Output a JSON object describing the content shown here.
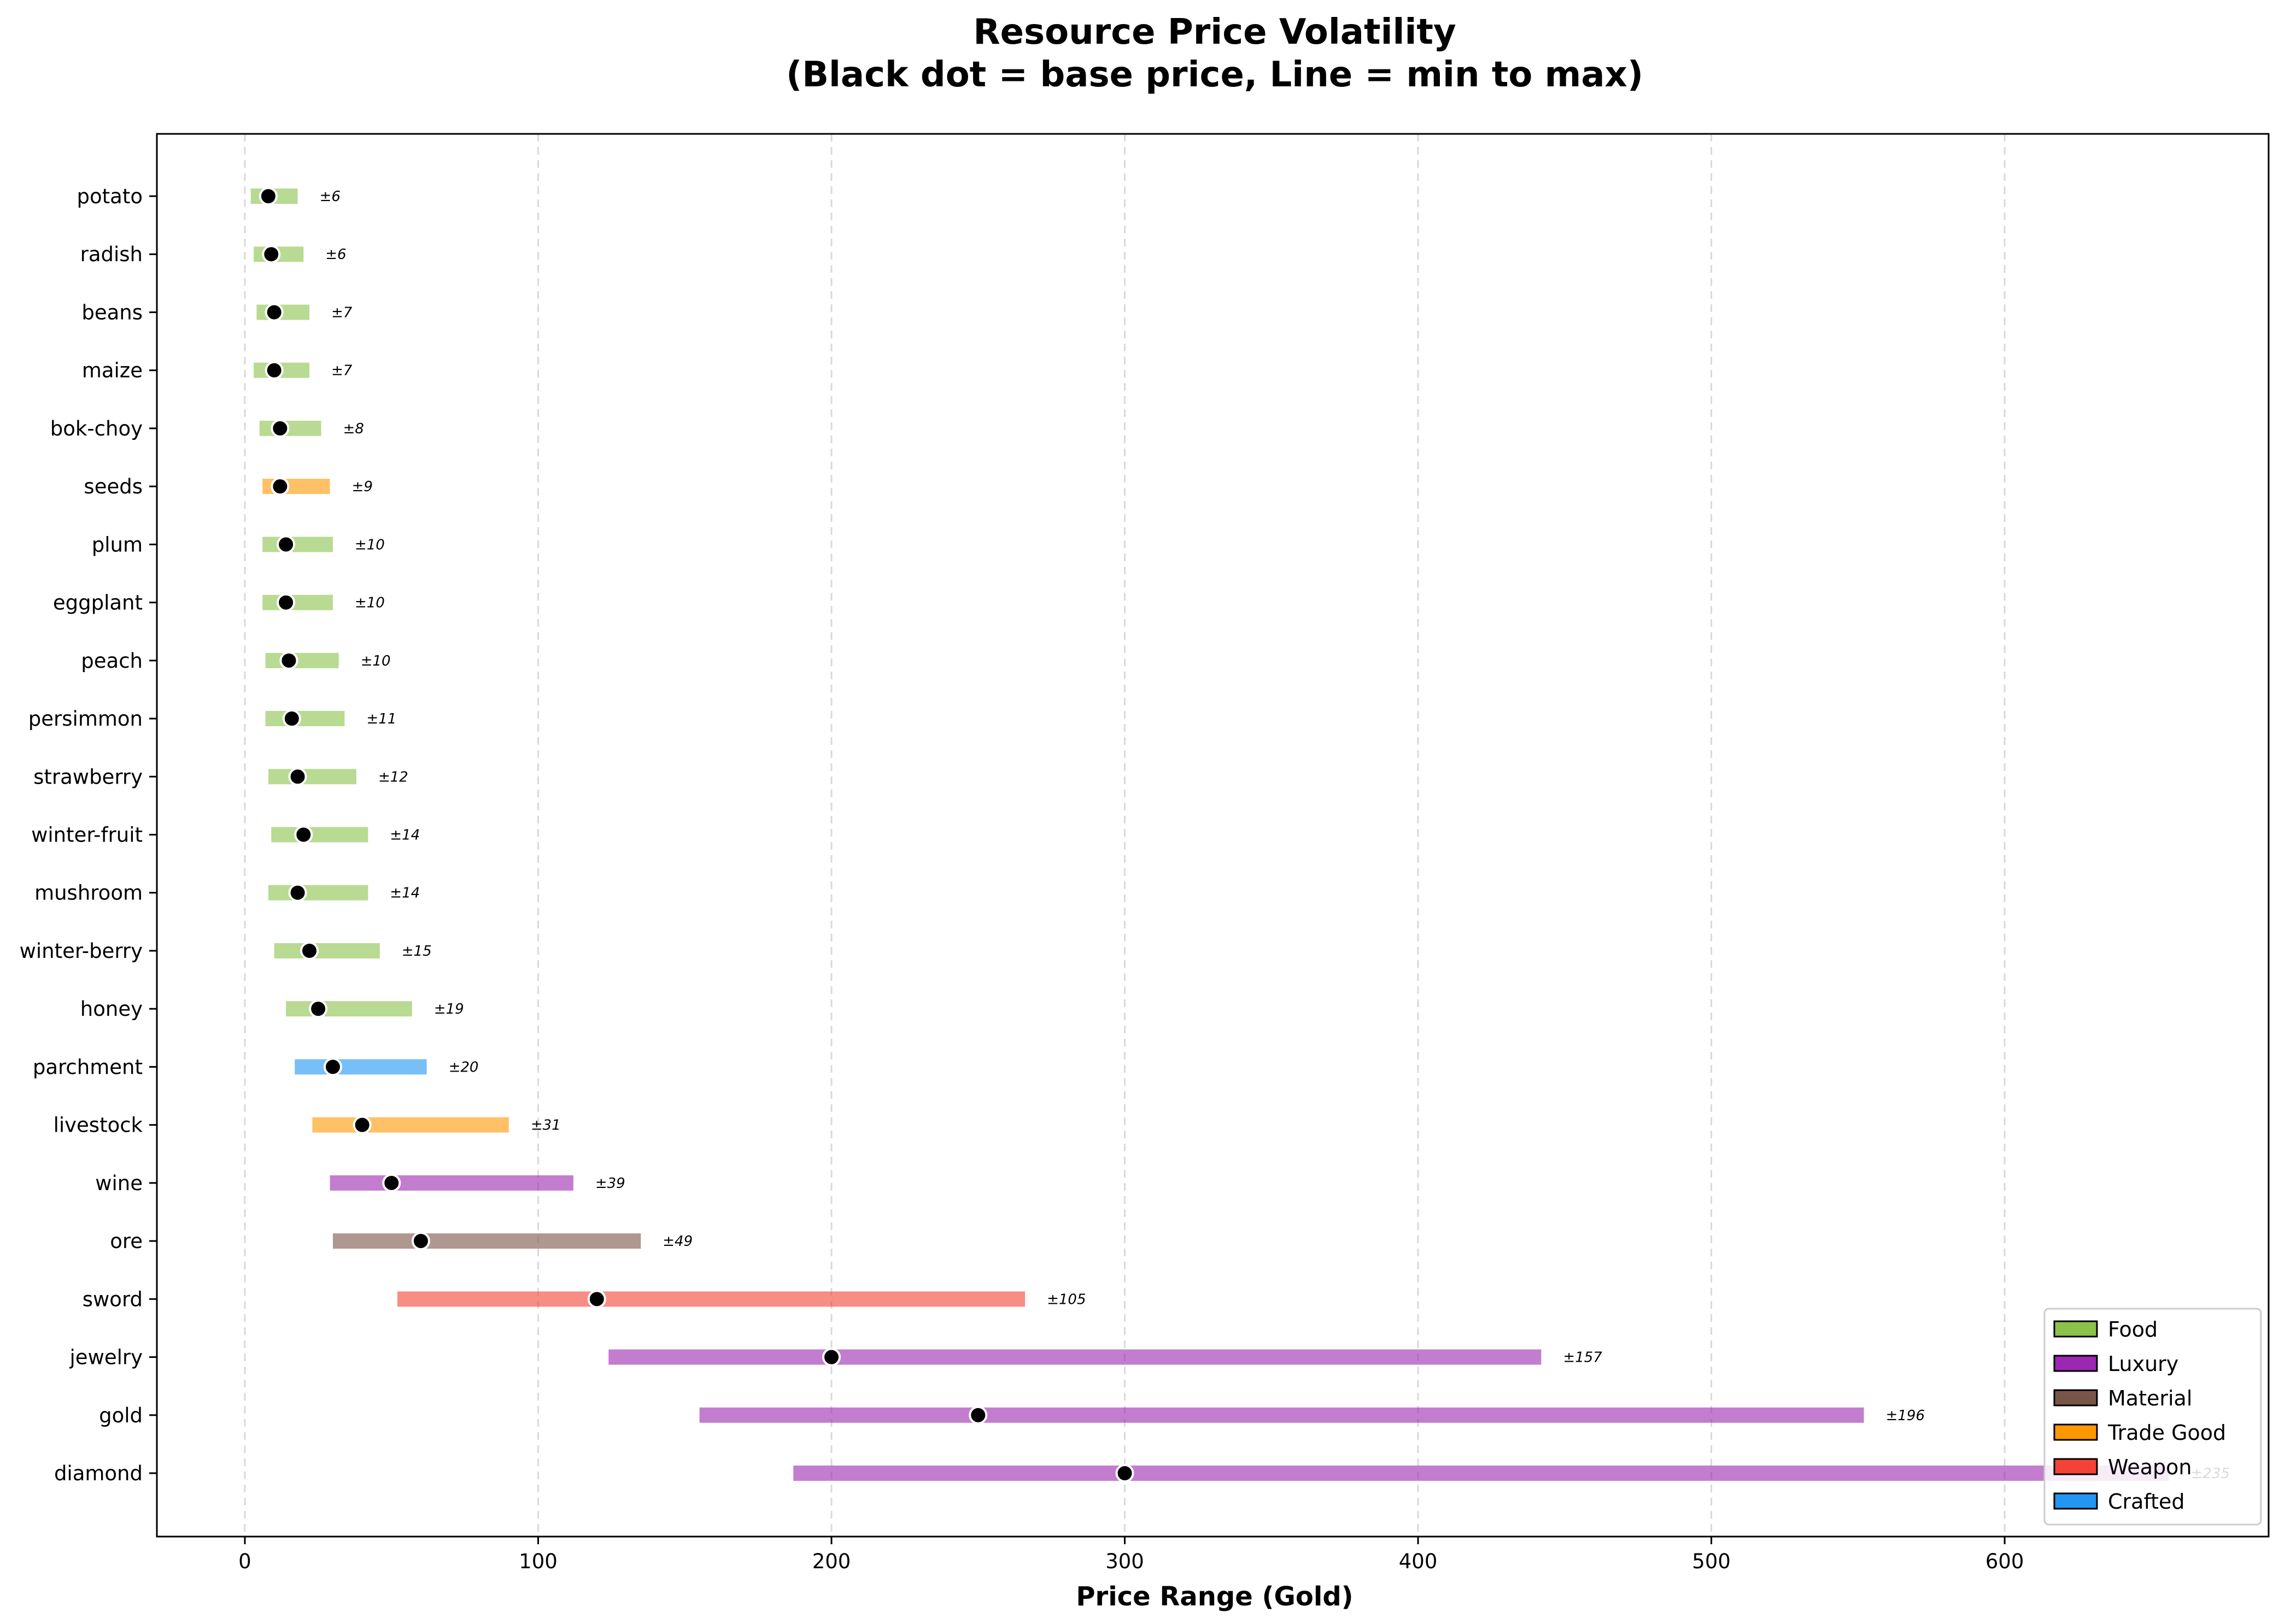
{
  "chart_data": {
    "type": "range",
    "title_lines": [
      "Resource Price Volatility",
      "(Black dot = base price, Line = min to max)"
    ],
    "xlabel": "Price Range (Gold)",
    "ylabel": "",
    "xlim": [
      -30,
      690
    ],
    "xticks": [
      0,
      100,
      200,
      300,
      400,
      500,
      600
    ],
    "grid": "x-dashed",
    "legend_position": "lower-right",
    "categories": {
      "Food": {
        "color": "#8bc34a"
      },
      "Luxury": {
        "color": "#9c27b0"
      },
      "Material": {
        "color": "#795548"
      },
      "Trade Good": {
        "color": "#ff9800"
      },
      "Weapon": {
        "color": "#f44336"
      },
      "Crafted": {
        "color": "#2196f3"
      }
    },
    "legend": [
      "Food",
      "Luxury",
      "Material",
      "Trade Good",
      "Weapon",
      "Crafted"
    ],
    "items": [
      {
        "name": "potato",
        "category": "Food",
        "min": 2,
        "max": 18,
        "base": 8,
        "label": "±6"
      },
      {
        "name": "radish",
        "category": "Food",
        "min": 3,
        "max": 20,
        "base": 9,
        "label": "±6"
      },
      {
        "name": "beans",
        "category": "Food",
        "min": 4,
        "max": 22,
        "base": 10,
        "label": "±7"
      },
      {
        "name": "maize",
        "category": "Food",
        "min": 3,
        "max": 22,
        "base": 10,
        "label": "±7"
      },
      {
        "name": "bok-choy",
        "category": "Food",
        "min": 5,
        "max": 26,
        "base": 12,
        "label": "±8"
      },
      {
        "name": "seeds",
        "category": "Trade Good",
        "min": 6,
        "max": 29,
        "base": 12,
        "label": "±9"
      },
      {
        "name": "plum",
        "category": "Food",
        "min": 6,
        "max": 30,
        "base": 14,
        "label": "±10"
      },
      {
        "name": "eggplant",
        "category": "Food",
        "min": 6,
        "max": 30,
        "base": 14,
        "label": "±10"
      },
      {
        "name": "peach",
        "category": "Food",
        "min": 7,
        "max": 32,
        "base": 15,
        "label": "±10"
      },
      {
        "name": "persimmon",
        "category": "Food",
        "min": 7,
        "max": 34,
        "base": 16,
        "label": "±11"
      },
      {
        "name": "strawberry",
        "category": "Food",
        "min": 8,
        "max": 38,
        "base": 18,
        "label": "±12"
      },
      {
        "name": "winter-fruit",
        "category": "Food",
        "min": 9,
        "max": 42,
        "base": 20,
        "label": "±14"
      },
      {
        "name": "mushroom",
        "category": "Food",
        "min": 8,
        "max": 42,
        "base": 18,
        "label": "±14"
      },
      {
        "name": "winter-berry",
        "category": "Food",
        "min": 10,
        "max": 46,
        "base": 22,
        "label": "±15"
      },
      {
        "name": "honey",
        "category": "Food",
        "min": 14,
        "max": 57,
        "base": 25,
        "label": "±19"
      },
      {
        "name": "parchment",
        "category": "Crafted",
        "min": 17,
        "max": 62,
        "base": 30,
        "label": "±20"
      },
      {
        "name": "livestock",
        "category": "Trade Good",
        "min": 23,
        "max": 90,
        "base": 40,
        "label": "±31"
      },
      {
        "name": "wine",
        "category": "Luxury",
        "min": 29,
        "max": 112,
        "base": 50,
        "label": "±39"
      },
      {
        "name": "ore",
        "category": "Material",
        "min": 30,
        "max": 135,
        "base": 60,
        "label": "±49"
      },
      {
        "name": "sword",
        "category": "Weapon",
        "min": 52,
        "max": 266,
        "base": 120,
        "label": "±105"
      },
      {
        "name": "jewelry",
        "category": "Luxury",
        "min": 124,
        "max": 442,
        "base": 200,
        "label": "±157"
      },
      {
        "name": "gold",
        "category": "Luxury",
        "min": 155,
        "max": 552,
        "base": 250,
        "label": "±196"
      },
      {
        "name": "diamond",
        "category": "Luxury",
        "min": 187,
        "max": 656,
        "base": 300,
        "label": "±235"
      }
    ]
  }
}
